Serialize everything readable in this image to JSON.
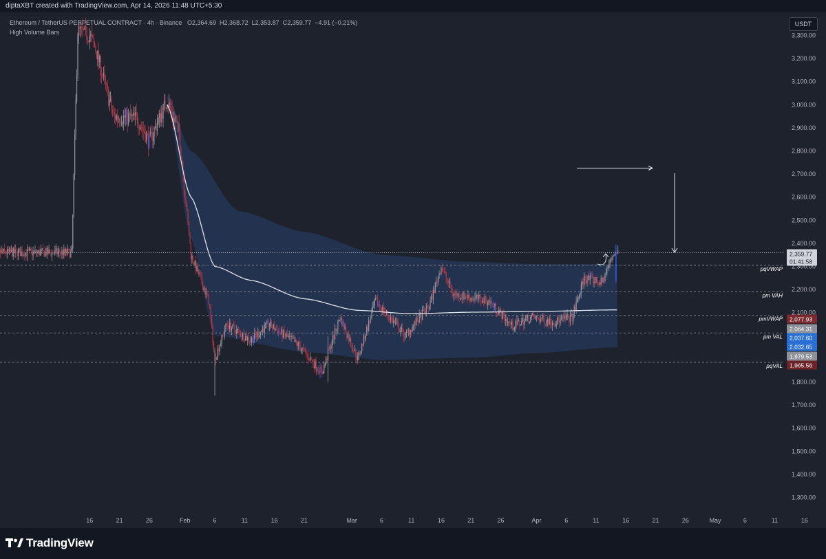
{
  "header": {
    "attribution": "diptaXBT created with TradingView.com, Apr 14, 2026 11:48 UTC+5:30"
  },
  "legend": {
    "symbol": "Ethereum / TetherUS PERPETUAL CONTRACT · 4h · Binance",
    "open_label": "O",
    "open": "2,364.69",
    "high_label": "H",
    "high": "2,368.72",
    "low_label": "L",
    "low": "2,353.87",
    "close_label": "C",
    "close": "2,359.77",
    "change": "−4.91 (−0.21%)",
    "indicator": "High Volume Bars"
  },
  "currency_button": "USDT",
  "brand": "TradingView",
  "colors": {
    "background": "#1e222d",
    "vwap_band": "#243450",
    "vwap_line": "#e0e3eb",
    "up_candle": "#9598a1",
    "down_candle": "#b23a48",
    "high_volume_up": "#2962ff",
    "current_price_label": "#d1d4dc",
    "pmvwap_label": "#7a2a2e",
    "pmval_label": "#2a6fd6",
    "pqval_label": "#6b2328"
  },
  "chart_data": {
    "type": "candlestick",
    "symbol": "ETHUSDT.P",
    "timeframe": "4h",
    "yrange": [
      1250,
      3400
    ],
    "y_ticks": [
      "3,300.00",
      "3,200.00",
      "3,100.00",
      "3,000.00",
      "2,900.00",
      "2,800.00",
      "2,700.00",
      "2,600.00",
      "2,500.00",
      "2,400.00",
      "2,300.00",
      "2,200.00",
      "2,100.00",
      "2,000.00",
      "1,900.00",
      "1,800.00",
      "1,700.00",
      "1,600.00",
      "1,500.00",
      "1,400.00",
      "1,300.00"
    ],
    "x_ticks": [
      "16",
      "21",
      "26",
      "Feb",
      "6",
      "11",
      "16",
      "21",
      "Mar",
      "6",
      "11",
      "16",
      "21",
      "26",
      "Apr",
      "6",
      "11",
      "16",
      "21",
      "26",
      "May",
      "6",
      "11",
      "16"
    ],
    "price_path": [
      {
        "date": "Jan 13",
        "price": 2360
      },
      {
        "date": "Jan 14",
        "price": 3320
      },
      {
        "date": "Jan 16",
        "price": 3300
      },
      {
        "date": "Jan 17",
        "price": 3240
      },
      {
        "date": "Jan 20",
        "price": 2950
      },
      {
        "date": "Jan 24",
        "price": 2940
      },
      {
        "date": "Jan 26",
        "price": 2840
      },
      {
        "date": "Jan 29",
        "price": 3020
      },
      {
        "date": "Jan 31",
        "price": 2880
      },
      {
        "date": "Feb 2",
        "price": 2350
      },
      {
        "date": "Feb 5",
        "price": 2150
      },
      {
        "date": "Feb 6",
        "price": 1900
      },
      {
        "date": "Feb 8",
        "price": 2050
      },
      {
        "date": "Feb 12",
        "price": 1980
      },
      {
        "date": "Feb 15",
        "price": 2050
      },
      {
        "date": "Feb 20",
        "price": 1960
      },
      {
        "date": "Feb 24",
        "price": 1840
      },
      {
        "date": "Feb 27",
        "price": 2080
      },
      {
        "date": "Mar 2",
        "price": 1900
      },
      {
        "date": "Mar 5",
        "price": 2150
      },
      {
        "date": "Mar 10",
        "price": 2000
      },
      {
        "date": "Mar 14",
        "price": 2130
      },
      {
        "date": "Mar 16",
        "price": 2300
      },
      {
        "date": "Mar 18",
        "price": 2180
      },
      {
        "date": "Mar 24",
        "price": 2150
      },
      {
        "date": "Mar 28",
        "price": 2040
      },
      {
        "date": "Mar 31",
        "price": 2080
      },
      {
        "date": "Apr 4",
        "price": 2060
      },
      {
        "date": "Apr 7",
        "price": 2080
      },
      {
        "date": "Apr 9",
        "price": 2250
      },
      {
        "date": "Apr 12",
        "price": 2230
      },
      {
        "date": "Apr 14",
        "price": 2360
      }
    ],
    "lows_extreme": [
      {
        "date": "Feb 6",
        "price": 1740
      },
      {
        "date": "Feb 25",
        "price": 1800
      }
    ],
    "vwap_path": [
      {
        "date": "Jan 29",
        "price": 3000
      },
      {
        "date": "Feb 2",
        "price": 2600
      },
      {
        "date": "Feb 6",
        "price": 2300
      },
      {
        "date": "Feb 12",
        "price": 2240
      },
      {
        "date": "Feb 21",
        "price": 2160
      },
      {
        "date": "Mar 2",
        "price": 2110
      },
      {
        "date": "Mar 11",
        "price": 2095
      },
      {
        "date": "Mar 21",
        "price": 2102
      },
      {
        "date": "Apr 1",
        "price": 2105
      },
      {
        "date": "Apr 14",
        "price": 2112
      }
    ],
    "band_upper": [
      {
        "date": "Jan 29",
        "price": 3040
      },
      {
        "date": "Feb 2",
        "price": 2800
      },
      {
        "date": "Feb 10",
        "price": 2540
      },
      {
        "date": "Feb 21",
        "price": 2450
      },
      {
        "date": "Mar 6",
        "price": 2350
      },
      {
        "date": "Mar 21",
        "price": 2320
      },
      {
        "date": "Apr 1",
        "price": 2310
      },
      {
        "date": "Apr 14",
        "price": 2310
      }
    ],
    "band_lower": [
      {
        "date": "Jan 29",
        "price": 3000
      },
      {
        "date": "Feb 2",
        "price": 2420
      },
      {
        "date": "Feb 6",
        "price": 2000
      },
      {
        "date": "Feb 21",
        "price": 1930
      },
      {
        "date": "Mar 6",
        "price": 1895
      },
      {
        "date": "Mar 21",
        "price": 1905
      },
      {
        "date": "Apr 1",
        "price": 1925
      },
      {
        "date": "Apr 14",
        "price": 1950
      }
    ],
    "levels": [
      {
        "name": "pqVWAP",
        "price": 2305,
        "tag": "pqVWAP"
      },
      {
        "name": "pm VAH",
        "price": 2190,
        "tag": "pm VAH"
      },
      {
        "name": "pmVWAP",
        "price": 2088,
        "tag": "pmVWAP"
      },
      {
        "name": "pm VAL",
        "price": 2012,
        "tag": "pm VAL"
      },
      {
        "name": "pqVAL",
        "price": 1885,
        "tag": "pqVAL"
      }
    ],
    "price_labels": [
      {
        "value": "2,359.77",
        "sub": "01:41:58",
        "kind": "current"
      },
      {
        "value": "2,077.93",
        "kind": "pmvwap"
      },
      {
        "value": "2,064.31",
        "kind": "grey"
      },
      {
        "value": "2,037.60",
        "kind": "blue"
      },
      {
        "value": "2,032.65",
        "kind": "blue"
      },
      {
        "value": "1,979.53",
        "kind": "grey"
      },
      {
        "value": "1,965.56",
        "kind": "pqval"
      }
    ],
    "drawings": [
      "horizontal-arrow",
      "vertical-arrow-down",
      "curved-arrow-up"
    ]
  }
}
